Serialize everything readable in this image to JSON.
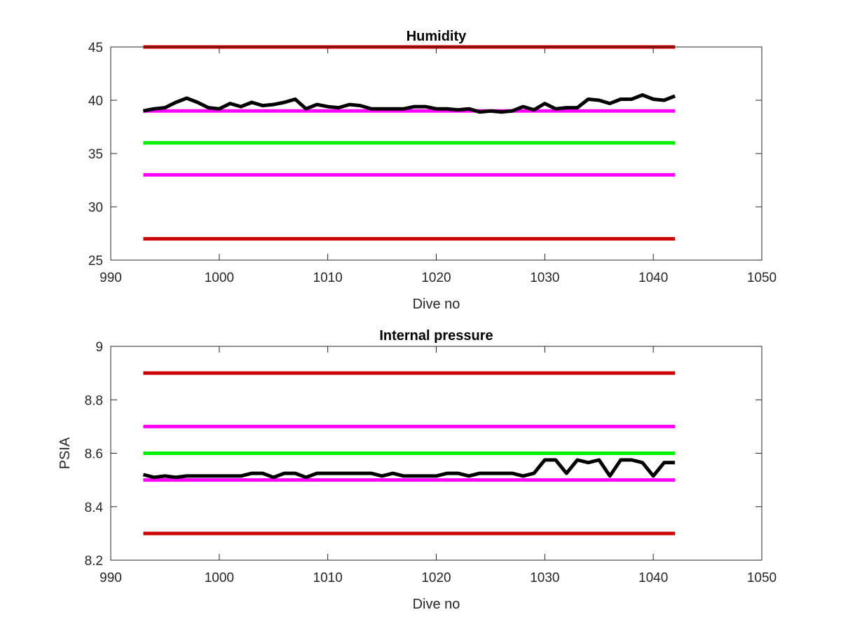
{
  "colors": {
    "red_limit": "#cc0000",
    "magenta_limit": "#ff00ff",
    "green_target": "#00ee00",
    "measurement": "#000000",
    "axes": "#262626",
    "background": "#ffffff"
  },
  "chart_data": [
    {
      "type": "line",
      "title": "Humidity",
      "xlabel": "Dive no",
      "ylabel": "",
      "xlim": [
        990,
        1050
      ],
      "ylim": [
        25,
        45
      ],
      "xticks": [
        990,
        1000,
        1010,
        1020,
        1030,
        1040,
        1050
      ],
      "yticks": [
        25,
        30,
        35,
        40,
        45
      ],
      "x_tick_labels": [
        "990",
        "1000",
        "1010",
        "1020",
        "1030",
        "1040",
        "1050"
      ],
      "y_tick_labels": [
        "25",
        "30",
        "35",
        "40",
        "45"
      ],
      "grid": false,
      "legend": "none",
      "reference_lines": [
        {
          "y": 45,
          "x": [
            993,
            1042
          ],
          "color": "red"
        },
        {
          "y": 39,
          "x": [
            993,
            1042
          ],
          "color": "magenta"
        },
        {
          "y": 36,
          "x": [
            993,
            1042
          ],
          "color": "green"
        },
        {
          "y": 33,
          "x": [
            993,
            1042
          ],
          "color": "magenta"
        },
        {
          "y": 27,
          "x": [
            993,
            1042
          ],
          "color": "red"
        }
      ],
      "series": [
        {
          "color": "black",
          "x": [
            993,
            994,
            995,
            996,
            997,
            998,
            999,
            1000,
            1001,
            1002,
            1003,
            1004,
            1005,
            1006,
            1007,
            1008,
            1009,
            1010,
            1011,
            1012,
            1013,
            1014,
            1015,
            1016,
            1017,
            1018,
            1019,
            1020,
            1021,
            1022,
            1023,
            1024,
            1025,
            1026,
            1027,
            1028,
            1029,
            1030,
            1031,
            1032,
            1033,
            1034,
            1035,
            1036,
            1037,
            1038,
            1039,
            1040,
            1041,
            1042
          ],
          "y": [
            39.0,
            39.2,
            39.3,
            39.8,
            40.2,
            39.8,
            39.3,
            39.2,
            39.7,
            39.4,
            39.8,
            39.5,
            39.6,
            39.8,
            40.1,
            39.2,
            39.6,
            39.4,
            39.3,
            39.6,
            39.5,
            39.2,
            39.2,
            39.2,
            39.2,
            39.4,
            39.4,
            39.2,
            39.2,
            39.1,
            39.2,
            38.9,
            39.0,
            38.9,
            39.0,
            39.4,
            39.1,
            39.7,
            39.2,
            39.3,
            39.3,
            40.1,
            40.0,
            39.7,
            40.1,
            40.1,
            40.5,
            40.1,
            40.0,
            40.4
          ]
        }
      ]
    },
    {
      "type": "line",
      "title": "Internal pressure",
      "xlabel": "Dive no",
      "ylabel": "PSIA",
      "xlim": [
        990,
        1050
      ],
      "ylim": [
        8.2,
        9.0
      ],
      "xticks": [
        990,
        1000,
        1010,
        1020,
        1030,
        1040,
        1050
      ],
      "yticks": [
        8.2,
        8.4,
        8.6,
        8.8,
        9.0
      ],
      "x_tick_labels": [
        "990",
        "1000",
        "1010",
        "1020",
        "1030",
        "1040",
        "1050"
      ],
      "y_tick_labels": [
        "8.2",
        "8.4",
        "8.6",
        "8.8",
        "9"
      ],
      "grid": false,
      "legend": "none",
      "reference_lines": [
        {
          "y": 8.9,
          "x": [
            993,
            1042
          ],
          "color": "red"
        },
        {
          "y": 8.7,
          "x": [
            993,
            1042
          ],
          "color": "magenta"
        },
        {
          "y": 8.6,
          "x": [
            993,
            1042
          ],
          "color": "green"
        },
        {
          "y": 8.5,
          "x": [
            993,
            1042
          ],
          "color": "magenta"
        },
        {
          "y": 8.3,
          "x": [
            993,
            1042
          ],
          "color": "red"
        }
      ],
      "series": [
        {
          "color": "black",
          "x": [
            993,
            994,
            995,
            996,
            997,
            998,
            999,
            1000,
            1001,
            1002,
            1003,
            1004,
            1005,
            1006,
            1007,
            1008,
            1009,
            1010,
            1011,
            1012,
            1013,
            1014,
            1015,
            1016,
            1017,
            1018,
            1019,
            1020,
            1021,
            1022,
            1023,
            1024,
            1025,
            1026,
            1027,
            1028,
            1029,
            1030,
            1031,
            1032,
            1033,
            1034,
            1035,
            1036,
            1037,
            1038,
            1039,
            1040,
            1041,
            1042
          ],
          "y": [
            8.52,
            8.51,
            8.515,
            8.51,
            8.515,
            8.515,
            8.515,
            8.515,
            8.515,
            8.515,
            8.525,
            8.525,
            8.51,
            8.525,
            8.525,
            8.51,
            8.525,
            8.525,
            8.525,
            8.525,
            8.525,
            8.525,
            8.515,
            8.525,
            8.515,
            8.515,
            8.515,
            8.515,
            8.525,
            8.525,
            8.515,
            8.525,
            8.525,
            8.525,
            8.525,
            8.515,
            8.525,
            8.575,
            8.575,
            8.525,
            8.575,
            8.565,
            8.575,
            8.515,
            8.575,
            8.575,
            8.565,
            8.515,
            8.565,
            8.565
          ]
        }
      ]
    }
  ]
}
